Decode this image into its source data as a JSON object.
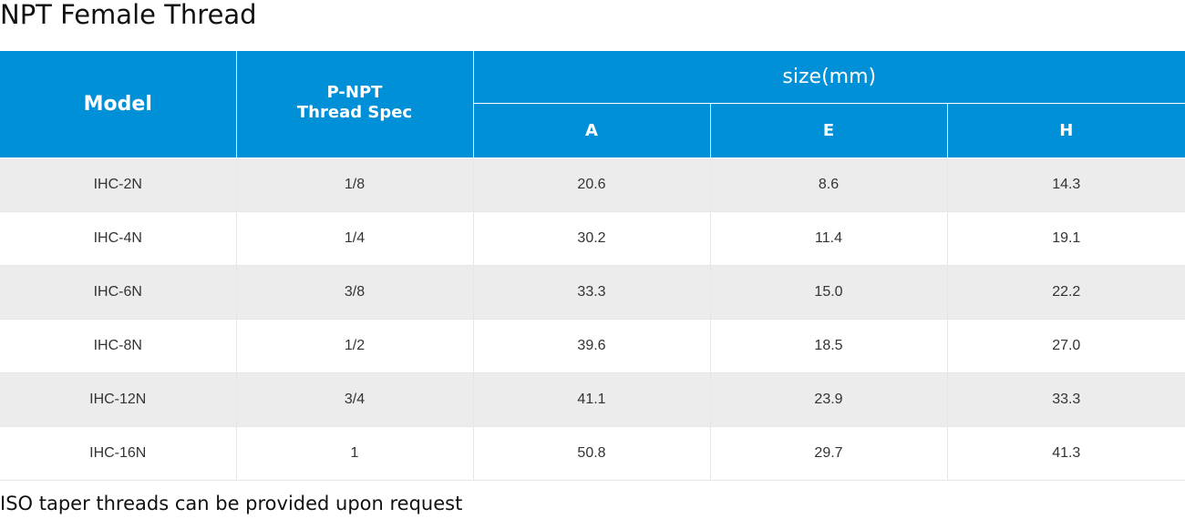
{
  "title": "NPT Female Thread",
  "table": {
    "header": {
      "model": "Model",
      "thread_line1": "P-NPT",
      "thread_line2": "Thread Spec",
      "size_group": "size(mm)",
      "a": "A",
      "e": "E",
      "h": "H"
    },
    "rows": [
      [
        "IHC-2N",
        "1/8",
        "20.6",
        "8.6",
        "14.3"
      ],
      [
        "IHC-4N",
        "1/4",
        "30.2",
        "11.4",
        "19.1"
      ],
      [
        "IHC-6N",
        "3/8",
        "33.3",
        "15.0",
        "22.2"
      ],
      [
        "IHC-8N",
        "1/2",
        "39.6",
        "18.5",
        "27.0"
      ],
      [
        "IHC-12N",
        "3/4",
        "41.1",
        "23.9",
        "33.3"
      ],
      [
        "IHC-16N",
        "1",
        "50.8",
        "29.7",
        "41.3"
      ]
    ]
  },
  "footnote": "ISO taper threads can be provided upon request",
  "colors": {
    "header_bg": "#0090d8",
    "row_alt_bg": "#ececed"
  }
}
